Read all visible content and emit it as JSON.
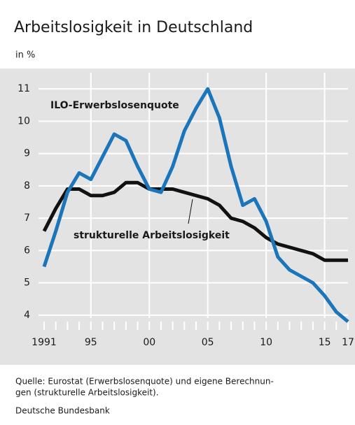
{
  "chart_data": {
    "type": "line",
    "title": "Arbeitslosigkeit in Deutschland",
    "subtitle": "in %",
    "x": [
      1991,
      1992,
      1993,
      1994,
      1995,
      1996,
      1997,
      1998,
      1999,
      2000,
      2001,
      2002,
      2003,
      2004,
      2005,
      2006,
      2007,
      2008,
      2009,
      2010,
      2011,
      2012,
      2013,
      2014,
      2015,
      2016,
      2017
    ],
    "series": [
      {
        "name": "ILO-Erwerbslosenquote",
        "color": "#1b75bb",
        "values": [
          5.5,
          6.6,
          7.8,
          8.4,
          8.2,
          8.9,
          9.6,
          9.4,
          8.6,
          7.9,
          7.8,
          8.6,
          9.7,
          10.4,
          11.0,
          10.1,
          8.6,
          7.4,
          7.6,
          6.9,
          5.8,
          5.4,
          5.2,
          5.0,
          4.6,
          4.1,
          3.8
        ]
      },
      {
        "name": "strukturelle Arbeitslosigkeit",
        "color": "#111111",
        "values": [
          6.6,
          7.3,
          7.9,
          7.9,
          7.7,
          7.7,
          7.8,
          8.1,
          8.1,
          7.9,
          7.9,
          7.9,
          7.8,
          7.7,
          7.6,
          7.4,
          7.0,
          6.9,
          6.7,
          6.4,
          6.2,
          6.1,
          6.0,
          5.9,
          5.7,
          5.7,
          5.7
        ]
      }
    ],
    "xlim": [
      1991,
      2017
    ],
    "xticks": [
      {
        "value": 1991,
        "label": "1991"
      },
      {
        "value": 1995,
        "label": "95"
      },
      {
        "value": 2000,
        "label": "00"
      },
      {
        "value": 2005,
        "label": "05"
      },
      {
        "value": 2010,
        "label": "10"
      },
      {
        "value": 2015,
        "label": "15"
      },
      {
        "value": 2017,
        "label": "17"
      }
    ],
    "xminorticks": [
      1991,
      1992,
      1993,
      1994,
      1995,
      1996,
      1997,
      1998,
      1999,
      2000,
      2001,
      2002,
      2003,
      2004,
      2005,
      2006,
      2007,
      2008,
      2009,
      2010,
      2011,
      2012,
      2013,
      2014,
      2015,
      2016,
      2017
    ],
    "ylim": [
      3.5,
      11.5
    ],
    "yticks": [
      4,
      5,
      6,
      7,
      8,
      9,
      10,
      11
    ],
    "grid": true,
    "source": [
      "Quelle: Eurostat (Erwerbslosenquote) und eigene Berechnun-",
      "gen (strukturelle Arbeitslosigkeit)."
    ],
    "publisher": "Deutsche Bundesbank"
  }
}
